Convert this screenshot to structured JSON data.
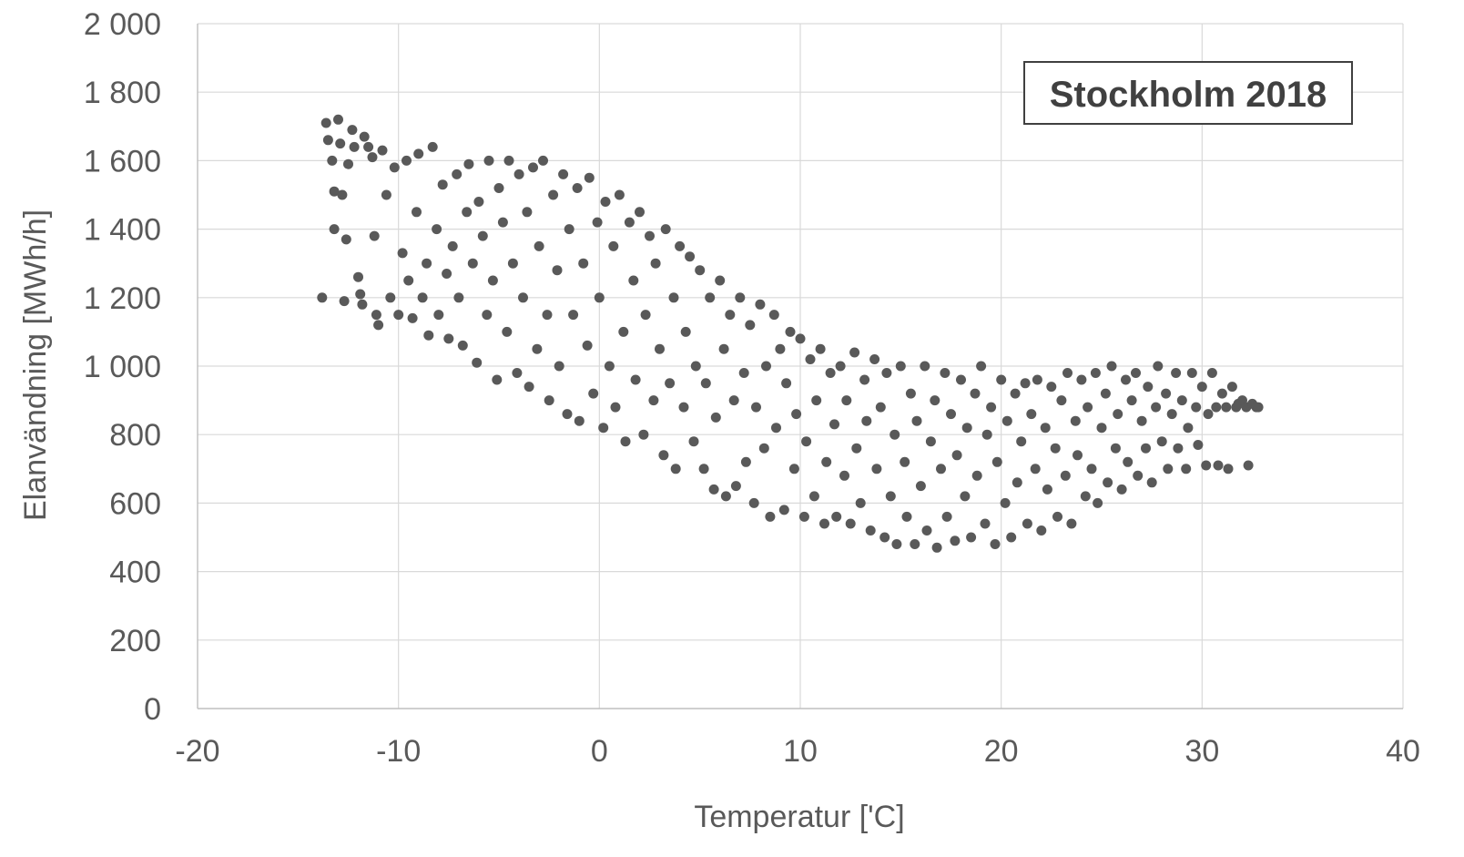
{
  "chart_data": {
    "type": "scatter",
    "title": "",
    "annotation": "Stockholm 2018",
    "xlabel": "Temperatur ['C]",
    "ylabel": "Elanvändning [MWh/h]",
    "xlim": [
      -20,
      40
    ],
    "ylim": [
      0,
      2000
    ],
    "x_ticks": [
      -20,
      -10,
      0,
      10,
      20,
      30,
      40
    ],
    "y_ticks": [
      0,
      200,
      400,
      600,
      800,
      1000,
      1200,
      1400,
      1600,
      1800,
      2000
    ],
    "x_tick_labels": [
      "-20",
      "-10",
      "0",
      "10",
      "20",
      "30",
      "40"
    ],
    "y_tick_labels": [
      "0",
      "200",
      "400",
      "600",
      "800",
      "1 000",
      "1 200",
      "1 400",
      "1 600",
      "1 800",
      "2 000"
    ],
    "grid": true,
    "legend": "none",
    "marker_color": "#595959",
    "series": [
      {
        "points": [
          [
            -13.8,
            1200
          ],
          [
            -13.6,
            1710
          ],
          [
            -13.5,
            1660
          ],
          [
            -13.3,
            1600
          ],
          [
            -13.2,
            1400
          ],
          [
            -13.2,
            1510
          ],
          [
            -13.0,
            1720
          ],
          [
            -12.9,
            1650
          ],
          [
            -12.8,
            1500
          ],
          [
            -12.7,
            1190
          ],
          [
            -12.6,
            1370
          ],
          [
            -12.5,
            1590
          ],
          [
            -12.3,
            1690
          ],
          [
            -12.2,
            1640
          ],
          [
            -12.0,
            1260
          ],
          [
            -11.9,
            1210
          ],
          [
            -11.8,
            1180
          ],
          [
            -11.7,
            1670
          ],
          [
            -11.5,
            1640
          ],
          [
            -11.3,
            1610
          ],
          [
            -11.2,
            1380
          ],
          [
            -11.1,
            1150
          ],
          [
            -11.0,
            1120
          ],
          [
            -10.8,
            1630
          ],
          [
            -10.6,
            1500
          ],
          [
            -10.4,
            1200
          ],
          [
            -10.2,
            1580
          ],
          [
            -10.0,
            1150
          ],
          [
            -9.8,
            1330
          ],
          [
            -9.6,
            1600
          ],
          [
            -9.5,
            1250
          ],
          [
            -9.3,
            1140
          ],
          [
            -9.1,
            1450
          ],
          [
            -9.0,
            1620
          ],
          [
            -8.8,
            1200
          ],
          [
            -8.6,
            1300
          ],
          [
            -8.5,
            1090
          ],
          [
            -8.3,
            1640
          ],
          [
            -8.1,
            1400
          ],
          [
            -8.0,
            1150
          ],
          [
            -7.8,
            1530
          ],
          [
            -7.6,
            1270
          ],
          [
            -7.5,
            1080
          ],
          [
            -7.3,
            1350
          ],
          [
            -7.1,
            1560
          ],
          [
            -7.0,
            1200
          ],
          [
            -6.8,
            1060
          ],
          [
            -6.6,
            1450
          ],
          [
            -6.5,
            1590
          ],
          [
            -6.3,
            1300
          ],
          [
            -6.1,
            1010
          ],
          [
            -6.0,
            1480
          ],
          [
            -5.8,
            1380
          ],
          [
            -5.6,
            1150
          ],
          [
            -5.5,
            1600
          ],
          [
            -5.3,
            1250
          ],
          [
            -5.1,
            960
          ],
          [
            -5.0,
            1520
          ],
          [
            -4.8,
            1420
          ],
          [
            -4.6,
            1100
          ],
          [
            -4.5,
            1600
          ],
          [
            -4.3,
            1300
          ],
          [
            -4.1,
            980
          ],
          [
            -4.0,
            1560
          ],
          [
            -3.8,
            1200
          ],
          [
            -3.6,
            1450
          ],
          [
            -3.5,
            940
          ],
          [
            -3.3,
            1580
          ],
          [
            -3.1,
            1050
          ],
          [
            -3.0,
            1350
          ],
          [
            -2.8,
            1600
          ],
          [
            -2.6,
            1150
          ],
          [
            -2.5,
            900
          ],
          [
            -2.3,
            1500
          ],
          [
            -2.1,
            1280
          ],
          [
            -2.0,
            1000
          ],
          [
            -1.8,
            1560
          ],
          [
            -1.6,
            860
          ],
          [
            -1.5,
            1400
          ],
          [
            -1.3,
            1150
          ],
          [
            -1.1,
            1520
          ],
          [
            -1.0,
            840
          ],
          [
            -0.8,
            1300
          ],
          [
            -0.6,
            1060
          ],
          [
            -0.5,
            1550
          ],
          [
            -0.3,
            920
          ],
          [
            -0.1,
            1420
          ],
          [
            0.0,
            1200
          ],
          [
            0.2,
            820
          ],
          [
            0.3,
            1480
          ],
          [
            0.5,
            1000
          ],
          [
            0.7,
            1350
          ],
          [
            0.8,
            880
          ],
          [
            1.0,
            1500
          ],
          [
            1.2,
            1100
          ],
          [
            1.3,
            780
          ],
          [
            1.5,
            1420
          ],
          [
            1.7,
            1250
          ],
          [
            1.8,
            960
          ],
          [
            2.0,
            1450
          ],
          [
            2.2,
            800
          ],
          [
            2.3,
            1150
          ],
          [
            2.5,
            1380
          ],
          [
            2.7,
            900
          ],
          [
            2.8,
            1300
          ],
          [
            3.0,
            1050
          ],
          [
            3.2,
            740
          ],
          [
            3.3,
            1400
          ],
          [
            3.5,
            950
          ],
          [
            3.7,
            1200
          ],
          [
            3.8,
            700
          ],
          [
            4.0,
            1350
          ],
          [
            4.2,
            880
          ],
          [
            4.3,
            1100
          ],
          [
            4.5,
            1320
          ],
          [
            4.7,
            780
          ],
          [
            4.8,
            1000
          ],
          [
            5.0,
            1280
          ],
          [
            5.2,
            700
          ],
          [
            5.3,
            950
          ],
          [
            5.5,
            1200
          ],
          [
            5.7,
            640
          ],
          [
            5.8,
            850
          ],
          [
            6.0,
            1250
          ],
          [
            6.2,
            1050
          ],
          [
            6.3,
            620
          ],
          [
            6.5,
            1150
          ],
          [
            6.7,
            900
          ],
          [
            6.8,
            650
          ],
          [
            7.0,
            1200
          ],
          [
            7.2,
            980
          ],
          [
            7.3,
            720
          ],
          [
            7.5,
            1120
          ],
          [
            7.7,
            600
          ],
          [
            7.8,
            880
          ],
          [
            8.0,
            1180
          ],
          [
            8.2,
            760
          ],
          [
            8.3,
            1000
          ],
          [
            8.5,
            560
          ],
          [
            8.7,
            1150
          ],
          [
            8.8,
            820
          ],
          [
            9.0,
            1050
          ],
          [
            9.2,
            580
          ],
          [
            9.3,
            950
          ],
          [
            9.5,
            1100
          ],
          [
            9.7,
            700
          ],
          [
            9.8,
            860
          ],
          [
            10.0,
            1080
          ],
          [
            10.2,
            560
          ],
          [
            10.3,
            780
          ],
          [
            10.5,
            1020
          ],
          [
            10.7,
            620
          ],
          [
            10.8,
            900
          ],
          [
            11.0,
            1050
          ],
          [
            11.2,
            540
          ],
          [
            11.3,
            720
          ],
          [
            11.5,
            980
          ],
          [
            11.7,
            830
          ],
          [
            11.8,
            560
          ],
          [
            12.0,
            1000
          ],
          [
            12.2,
            680
          ],
          [
            12.3,
            900
          ],
          [
            12.5,
            540
          ],
          [
            12.7,
            1040
          ],
          [
            12.8,
            760
          ],
          [
            13.0,
            600
          ],
          [
            13.2,
            960
          ],
          [
            13.3,
            840
          ],
          [
            13.5,
            520
          ],
          [
            13.7,
            1020
          ],
          [
            13.8,
            700
          ],
          [
            14.0,
            880
          ],
          [
            14.2,
            500
          ],
          [
            14.3,
            980
          ],
          [
            14.5,
            620
          ],
          [
            14.7,
            800
          ],
          [
            14.8,
            480
          ],
          [
            15.0,
            1000
          ],
          [
            15.2,
            720
          ],
          [
            15.3,
            560
          ],
          [
            15.5,
            920
          ],
          [
            15.7,
            480
          ],
          [
            15.8,
            840
          ],
          [
            16.0,
            650
          ],
          [
            16.2,
            1000
          ],
          [
            16.3,
            520
          ],
          [
            16.5,
            780
          ],
          [
            16.7,
            900
          ],
          [
            16.8,
            470
          ],
          [
            17.0,
            700
          ],
          [
            17.2,
            980
          ],
          [
            17.3,
            560
          ],
          [
            17.5,
            860
          ],
          [
            17.7,
            490
          ],
          [
            17.8,
            740
          ],
          [
            18.0,
            960
          ],
          [
            18.2,
            620
          ],
          [
            18.3,
            820
          ],
          [
            18.5,
            500
          ],
          [
            18.7,
            920
          ],
          [
            18.8,
            680
          ],
          [
            19.0,
            1000
          ],
          [
            19.2,
            540
          ],
          [
            19.3,
            800
          ],
          [
            19.5,
            880
          ],
          [
            19.7,
            480
          ],
          [
            19.8,
            720
          ],
          [
            20.0,
            960
          ],
          [
            20.2,
            600
          ],
          [
            20.3,
            840
          ],
          [
            20.5,
            500
          ],
          [
            20.7,
            920
          ],
          [
            20.8,
            660
          ],
          [
            21.0,
            780
          ],
          [
            21.2,
            950
          ],
          [
            21.3,
            540
          ],
          [
            21.5,
            860
          ],
          [
            21.7,
            700
          ],
          [
            21.8,
            960
          ],
          [
            22.0,
            520
          ],
          [
            22.2,
            820
          ],
          [
            22.3,
            640
          ],
          [
            22.5,
            940
          ],
          [
            22.7,
            760
          ],
          [
            22.8,
            560
          ],
          [
            23.0,
            900
          ],
          [
            23.2,
            680
          ],
          [
            23.3,
            980
          ],
          [
            23.5,
            540
          ],
          [
            23.7,
            840
          ],
          [
            23.8,
            740
          ],
          [
            24.0,
            960
          ],
          [
            24.2,
            620
          ],
          [
            24.3,
            880
          ],
          [
            24.5,
            700
          ],
          [
            24.7,
            980
          ],
          [
            24.8,
            600
          ],
          [
            25.0,
            820
          ],
          [
            25.2,
            920
          ],
          [
            25.3,
            660
          ],
          [
            25.5,
            1000
          ],
          [
            25.7,
            760
          ],
          [
            25.8,
            860
          ],
          [
            26.0,
            640
          ],
          [
            26.2,
            960
          ],
          [
            26.3,
            720
          ],
          [
            26.5,
            900
          ],
          [
            26.7,
            980
          ],
          [
            26.8,
            680
          ],
          [
            27.0,
            840
          ],
          [
            27.2,
            760
          ],
          [
            27.3,
            940
          ],
          [
            27.5,
            660
          ],
          [
            27.7,
            880
          ],
          [
            27.8,
            1000
          ],
          [
            28.0,
            780
          ],
          [
            28.2,
            920
          ],
          [
            28.3,
            700
          ],
          [
            28.5,
            860
          ],
          [
            28.7,
            980
          ],
          [
            28.8,
            760
          ],
          [
            29.0,
            900
          ],
          [
            29.2,
            700
          ],
          [
            29.3,
            820
          ],
          [
            29.5,
            980
          ],
          [
            29.7,
            880
          ],
          [
            29.8,
            770
          ],
          [
            30.0,
            940
          ],
          [
            30.2,
            710
          ],
          [
            30.3,
            860
          ],
          [
            30.5,
            980
          ],
          [
            30.7,
            880
          ],
          [
            30.8,
            710
          ],
          [
            31.0,
            920
          ],
          [
            31.2,
            880
          ],
          [
            31.3,
            700
          ],
          [
            31.5,
            940
          ],
          [
            31.7,
            880
          ],
          [
            31.8,
            890
          ],
          [
            32.0,
            900
          ],
          [
            32.2,
            880
          ],
          [
            32.3,
            710
          ],
          [
            32.5,
            890
          ],
          [
            32.7,
            880
          ],
          [
            32.8,
            880
          ]
        ]
      }
    ]
  }
}
